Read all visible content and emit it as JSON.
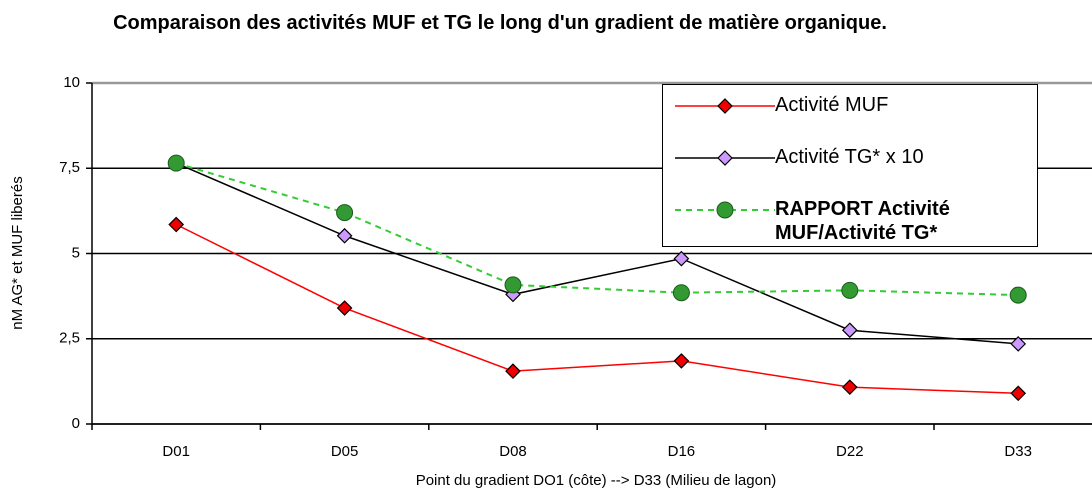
{
  "chart_data": {
    "type": "line",
    "title": "Comparaison des activités MUF et TG  le long d'un gradient de matière organique.",
    "x_label": "Point du gradient DO1 (côte) --> D33 (Milieu de lagon)",
    "y_label": "nM AG* et MUF liberés",
    "categories": [
      "D01",
      "D05",
      "D08",
      "D16",
      "D22",
      "D33"
    ],
    "series": [
      {
        "name": "Activité MUF",
        "color": "#ff0000",
        "marker": "diamond",
        "marker_color": "#ee0000",
        "dashed": false,
        "bold": false,
        "values": [
          5.85,
          3.4,
          1.55,
          1.85,
          1.08,
          0.9
        ]
      },
      {
        "name": "Activité TG* x 10",
        "color": "#000000",
        "marker": "diamond",
        "marker_color": "#cc99ff",
        "dashed": false,
        "bold": false,
        "values": [
          7.65,
          5.52,
          3.8,
          4.85,
          2.75,
          2.35
        ]
      },
      {
        "name": "RAPPORT Activité MUF/Activité TG*",
        "color": "#33cc33",
        "marker": "circle",
        "marker_color": "#339933",
        "dashed": true,
        "bold": true,
        "values": [
          7.65,
          6.2,
          4.08,
          3.85,
          3.92,
          3.78
        ]
      }
    ],
    "ylim": [
      0,
      10
    ],
    "yticks": [
      0,
      {
        "value": 2.5,
        "label": "2,5"
      },
      5,
      {
        "value": 7.5,
        "label": "7,5"
      },
      10
    ],
    "grid": true,
    "legend": "upper right"
  }
}
